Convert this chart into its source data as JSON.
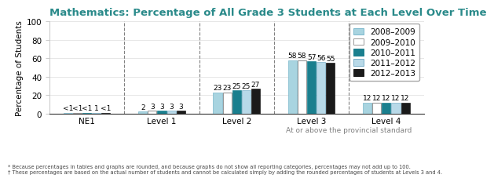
{
  "title": "Mathematics: Percentage of All Grade 3 Students at Each Level Over Time",
  "ylabel": "Percentage of Students",
  "categories": [
    "NE1",
    "Level 1",
    "Level 2",
    "Level 3",
    "Level 4"
  ],
  "years": [
    "2008–2009",
    "2009–2010",
    "2010–2011",
    "2011–2012",
    "2012–2013"
  ],
  "values": {
    "NE1": [
      1,
      1,
      1,
      1,
      1
    ],
    "Level 1": [
      2,
      3,
      3,
      3,
      3
    ],
    "Level 2": [
      23,
      23,
      25,
      25,
      27
    ],
    "Level 3": [
      58,
      58,
      57,
      56,
      55
    ],
    "Level 4": [
      12,
      12,
      12,
      12,
      12
    ]
  },
  "labels": {
    "NE1": [
      "<1",
      "<1",
      "<1",
      "1",
      "<1"
    ],
    "Level 1": [
      "2",
      "3",
      "3",
      "3",
      "3"
    ],
    "Level 2": [
      "23",
      "23",
      "25",
      "25",
      "27"
    ],
    "Level 3": [
      "58",
      "58",
      "57",
      "56",
      "55"
    ],
    "Level 4": [
      "12",
      "12",
      "12",
      "12",
      "12"
    ]
  },
  "bar_colors": [
    "#a8d4e0",
    "#ffffff",
    "#1a7f8e",
    "#b8d9e8",
    "#1a1a1a"
  ],
  "bar_edgecolors": [
    "#7bb8cc",
    "#999999",
    "#1a7f8e",
    "#7bafc8",
    "#1a1a1a"
  ],
  "ylim": [
    0,
    100
  ],
  "yticks": [
    0,
    20,
    40,
    60,
    80,
    100
  ],
  "title_color": "#2a8a8a",
  "title_fontsize": 9.5,
  "legend_fontsize": 7.5,
  "tick_fontsize": 7.5,
  "label_fontsize": 6.5,
  "ylabel_fontsize": 7.5,
  "footnote1": "* Because percentages in tables and graphs are rounded, and because graphs do not show all reporting categories, percentages may not add up to 100.",
  "footnote2": "† These percentages are based on the actual number of students and cannot be calculated simply by adding the rounded percentages of students at Levels 3 and 4.",
  "provincial_label": "At or above the provincial standard",
  "background_color": "#ffffff"
}
